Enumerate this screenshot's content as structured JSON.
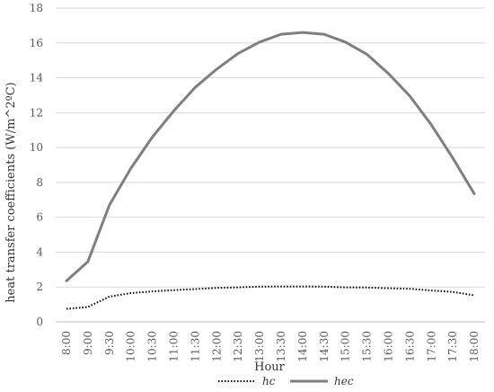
{
  "chart_data": {
    "type": "line",
    "xlabel": "Hour",
    "ylabel": "heat transfer coefficients (W/m^2ºC)",
    "ylim": [
      0,
      18
    ],
    "yticks": [
      0,
      2,
      4,
      6,
      8,
      10,
      12,
      14,
      16,
      18
    ],
    "grid": true,
    "legend_position": "bottom",
    "categories": [
      "8:00",
      "9:00",
      "9:30",
      "10:00",
      "10:30",
      "11:00",
      "11:30",
      "12:00",
      "12:30",
      "13:00",
      "13:30",
      "14:00",
      "14:30",
      "15:00",
      "15:30",
      "16:00",
      "16:30",
      "17:00",
      "17:30",
      "18:00"
    ],
    "series": [
      {
        "name": "hc",
        "style": "dotted",
        "color": "#000000",
        "values": [
          0.75,
          0.85,
          1.45,
          1.65,
          1.75,
          1.82,
          1.88,
          1.95,
          1.98,
          2.02,
          2.03,
          2.03,
          2.02,
          1.98,
          1.97,
          1.93,
          1.9,
          1.8,
          1.72,
          1.52
        ]
      },
      {
        "name": "hec",
        "style": "solid",
        "color": "#7f7f7f",
        "values": [
          2.35,
          3.45,
          6.7,
          8.8,
          10.6,
          12.1,
          13.45,
          14.5,
          15.4,
          16.05,
          16.5,
          16.6,
          16.5,
          16.05,
          15.35,
          14.25,
          12.95,
          11.3,
          9.4,
          7.35
        ]
      }
    ]
  }
}
